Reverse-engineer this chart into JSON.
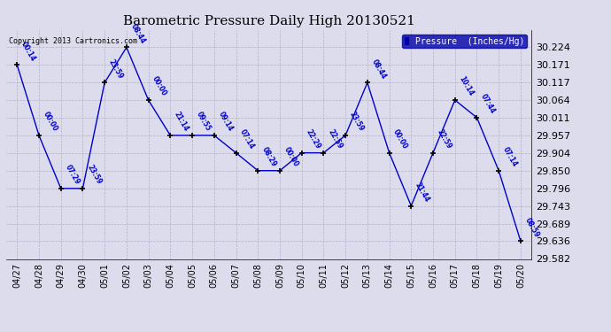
{
  "title": "Barometric Pressure Daily High 20130521",
  "copyright": "Copyright 2013 Cartronics.com",
  "legend_label": "Pressure  (Inches/Hg)",
  "dates": [
    "04/27",
    "04/28",
    "04/29",
    "04/30",
    "05/01",
    "05/02",
    "05/03",
    "05/04",
    "05/05",
    "05/06",
    "05/07",
    "05/08",
    "05/09",
    "05/10",
    "05/11",
    "05/12",
    "05/13",
    "05/14",
    "05/15",
    "05/16",
    "05/17",
    "05/18",
    "05/19",
    "05/20"
  ],
  "values": [
    30.171,
    29.957,
    29.796,
    29.796,
    30.117,
    30.224,
    30.064,
    29.957,
    29.957,
    29.957,
    29.904,
    29.85,
    29.85,
    29.904,
    29.904,
    29.957,
    30.117,
    29.904,
    29.743,
    29.904,
    30.064,
    30.011,
    29.85,
    29.636
  ],
  "times": [
    "00:14",
    "00:00",
    "07:29",
    "23:59",
    "23:59",
    "08:44",
    "00:00",
    "21:14",
    "09:55",
    "09:14",
    "07:14",
    "08:29",
    "00:00",
    "22:29",
    "22:59",
    "23:59",
    "08:44",
    "00:00",
    "21:44",
    "22:59",
    "10:14",
    "07:44",
    "07:14",
    "08:59"
  ],
  "line_color": "#0000CC",
  "marker_color": "#000000",
  "bg_color": "#DCDCEC",
  "grid_color": "#B0B0CC",
  "title_fontsize": 11,
  "ylabel_fontsize": 8,
  "xlabel_fontsize": 7,
  "ylim_min": 29.582,
  "ylim_max": 30.277,
  "yticks": [
    29.582,
    29.636,
    29.689,
    29.743,
    29.796,
    29.85,
    29.904,
    29.957,
    30.011,
    30.064,
    30.117,
    30.171,
    30.224
  ],
  "legend_bg_color": "#0000AA",
  "legend_text_color": "#FFFFFF"
}
